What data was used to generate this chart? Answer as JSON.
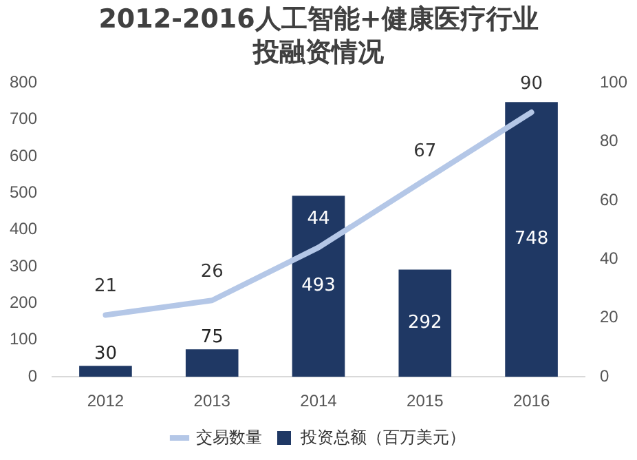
{
  "chart_data": {
    "type": "bar",
    "title": "2012-2016人工智能+健康医疗行业投融资情况",
    "categories": [
      "2012",
      "2013",
      "2014",
      "2015",
      "2016"
    ],
    "series": [
      {
        "name": "投资总额（百万美元）",
        "color": "#1f3864",
        "values": [
          30,
          75,
          493,
          292,
          748
        ]
      },
      {
        "name": "交易数量",
        "type": "line",
        "axis": "y2",
        "color": "#b4c7e7",
        "values": [
          21,
          26,
          44,
          67,
          90
        ]
      }
    ],
    "ylim": [
      0,
      800
    ],
    "yticks": [
      0,
      100,
      200,
      300,
      400,
      500,
      600,
      700,
      800
    ],
    "y2lim": [
      0,
      100
    ],
    "y2ticks": [
      0,
      20,
      40,
      60,
      80,
      100
    ],
    "grid": false,
    "legend": "bottom",
    "marker": "none",
    "data_labels": true
  }
}
